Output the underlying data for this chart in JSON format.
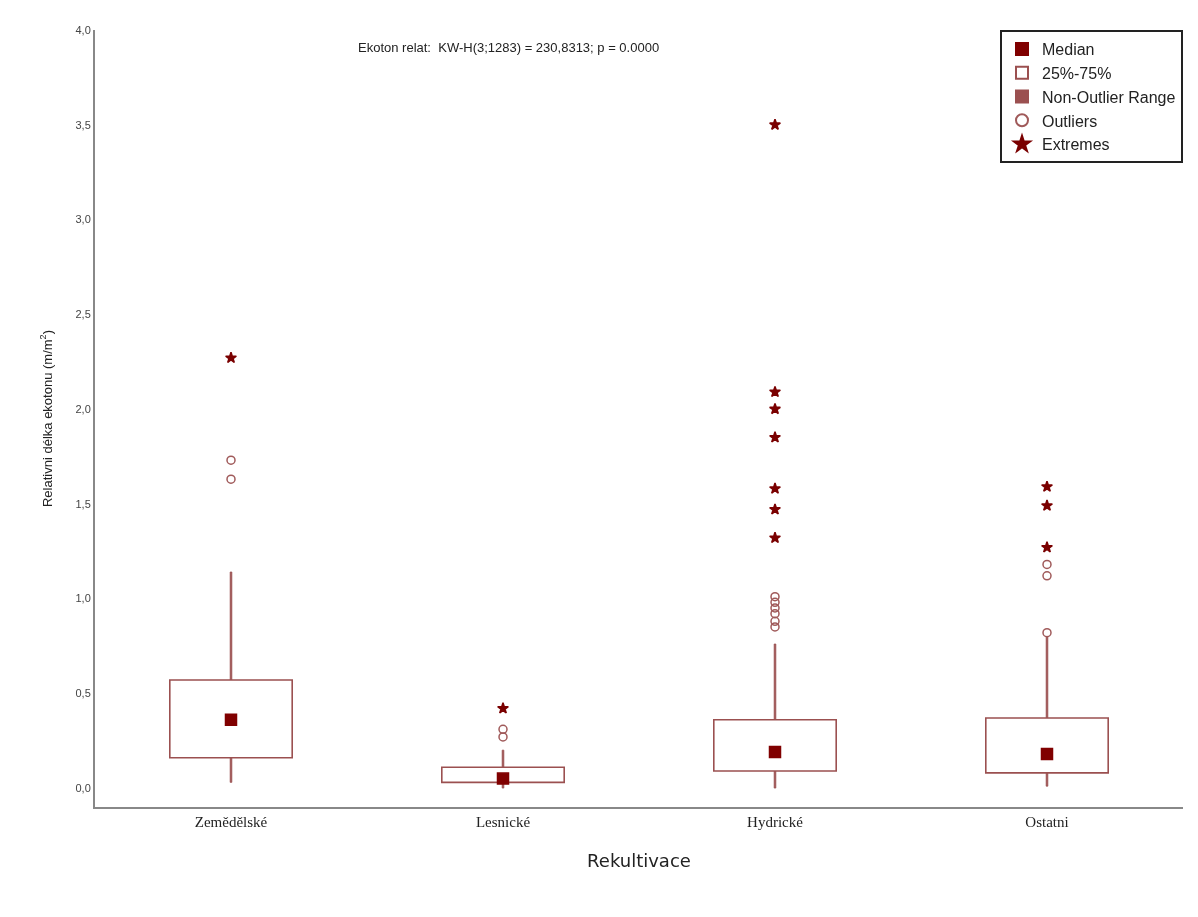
{
  "chart_data": {
    "type": "box",
    "annotations": [
      "Ekoton relat:  KW-H(3;1283) = 230,8313; p = 0.0000"
    ],
    "xlabel": "Rekultivace",
    "ylabel": "Relativni délka ekotonu (m/m$^{2}$)",
    "categories": [
      "Zemědělské",
      "Lesnické",
      "Hydrické",
      "Ostatni"
    ],
    "ylim": [
      -0.1,
      4.0
    ],
    "yticks": [
      {
        "value": 0,
        "label": "0,0"
      },
      {
        "value": 0.5,
        "label": "0,5"
      },
      {
        "value": 1.0,
        "label": "1,0"
      },
      {
        "value": 1.5,
        "label": "1,5"
      },
      {
        "value": 2.0,
        "label": "2,0"
      },
      {
        "value": 2.5,
        "label": "2,5"
      },
      {
        "value": 3.0,
        "label": "3,0"
      },
      {
        "value": 3.5,
        "label": "3,5"
      },
      {
        "value": 4.0,
        "label": "4,0"
      }
    ],
    "legend": "top right",
    "series": [
      {
        "name": "Median",
        "type": "scatter",
        "marker": "square",
        "color": "#800000",
        "values": [
          0.36,
          0.05,
          0.19,
          0.18
        ]
      },
      {
        "name": "25%-75%",
        "type": "bar",
        "color": "#9b5050",
        "base": [
          0.16,
          0.03,
          0.09,
          0.08
        ],
        "values": [
          0.41,
          0.08,
          0.27,
          0.29
        ]
      },
      {
        "name": "Non-Outlier Range",
        "type": "bar",
        "color": "#9b5050",
        "base": [
          0.03,
          0.0,
          0.0,
          0.01
        ],
        "values": [
          1.11,
          0.2,
          0.76,
          0.79
        ]
      },
      {
        "name": "Outliers",
        "type": "scatter",
        "marker": "circle",
        "color": "#a05a5a",
        "x": [
          "Zemědělské",
          "Zemědělské",
          "Lesnické",
          "Lesnické",
          "Hydrické",
          "Hydrické",
          "Hydrické",
          "Hydrické",
          "Hydrické",
          "Hydrické",
          "Ostatni",
          "Ostatni",
          "Ostatni"
        ],
        "values": [
          1.73,
          1.63,
          0.31,
          0.27,
          1.01,
          0.98,
          0.95,
          0.92,
          0.88,
          0.85,
          1.18,
          1.12,
          0.82
        ]
      },
      {
        "name": "Extremes",
        "type": "scatter",
        "marker": "star",
        "color": "#7a0000",
        "x": [
          "Zemědělské",
          "Lesnické",
          "Hydrické",
          "Hydrické",
          "Hydrické",
          "Hydrické",
          "Hydrické",
          "Hydrické",
          "Hydrické",
          "Ostatni",
          "Ostatni",
          "Ostatni"
        ],
        "values": [
          2.27,
          0.42,
          3.5,
          2.09,
          2.0,
          1.85,
          1.58,
          1.47,
          1.32,
          1.59,
          1.49,
          1.27
        ]
      }
    ]
  }
}
